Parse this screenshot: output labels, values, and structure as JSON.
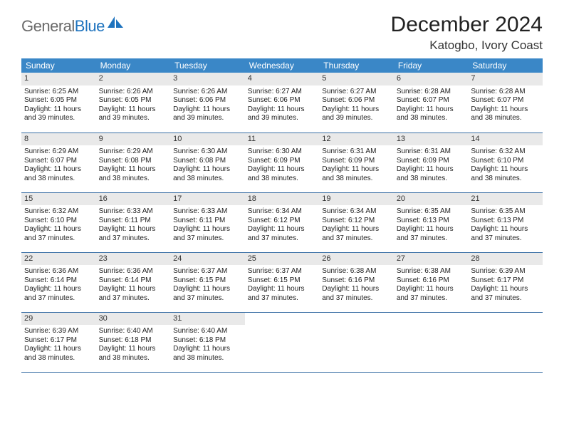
{
  "logo": {
    "text_gray": "General",
    "text_blue": "Blue"
  },
  "header": {
    "month_title": "December 2024",
    "location": "Katogbo, Ivory Coast"
  },
  "colors": {
    "header_bg": "#3a87c7",
    "header_text": "#ffffff",
    "daynum_bg": "#e9e9e9",
    "week_border": "#3a6fa5",
    "logo_gray": "#6a6a6a",
    "logo_blue": "#1e73be"
  },
  "day_names": [
    "Sunday",
    "Monday",
    "Tuesday",
    "Wednesday",
    "Thursday",
    "Friday",
    "Saturday"
  ],
  "weeks": [
    [
      {
        "n": "1",
        "sr": "Sunrise: 6:25 AM",
        "ss": "Sunset: 6:05 PM",
        "d1": "Daylight: 11 hours",
        "d2": "and 39 minutes."
      },
      {
        "n": "2",
        "sr": "Sunrise: 6:26 AM",
        "ss": "Sunset: 6:05 PM",
        "d1": "Daylight: 11 hours",
        "d2": "and 39 minutes."
      },
      {
        "n": "3",
        "sr": "Sunrise: 6:26 AM",
        "ss": "Sunset: 6:06 PM",
        "d1": "Daylight: 11 hours",
        "d2": "and 39 minutes."
      },
      {
        "n": "4",
        "sr": "Sunrise: 6:27 AM",
        "ss": "Sunset: 6:06 PM",
        "d1": "Daylight: 11 hours",
        "d2": "and 39 minutes."
      },
      {
        "n": "5",
        "sr": "Sunrise: 6:27 AM",
        "ss": "Sunset: 6:06 PM",
        "d1": "Daylight: 11 hours",
        "d2": "and 39 minutes."
      },
      {
        "n": "6",
        "sr": "Sunrise: 6:28 AM",
        "ss": "Sunset: 6:07 PM",
        "d1": "Daylight: 11 hours",
        "d2": "and 38 minutes."
      },
      {
        "n": "7",
        "sr": "Sunrise: 6:28 AM",
        "ss": "Sunset: 6:07 PM",
        "d1": "Daylight: 11 hours",
        "d2": "and 38 minutes."
      }
    ],
    [
      {
        "n": "8",
        "sr": "Sunrise: 6:29 AM",
        "ss": "Sunset: 6:07 PM",
        "d1": "Daylight: 11 hours",
        "d2": "and 38 minutes."
      },
      {
        "n": "9",
        "sr": "Sunrise: 6:29 AM",
        "ss": "Sunset: 6:08 PM",
        "d1": "Daylight: 11 hours",
        "d2": "and 38 minutes."
      },
      {
        "n": "10",
        "sr": "Sunrise: 6:30 AM",
        "ss": "Sunset: 6:08 PM",
        "d1": "Daylight: 11 hours",
        "d2": "and 38 minutes."
      },
      {
        "n": "11",
        "sr": "Sunrise: 6:30 AM",
        "ss": "Sunset: 6:09 PM",
        "d1": "Daylight: 11 hours",
        "d2": "and 38 minutes."
      },
      {
        "n": "12",
        "sr": "Sunrise: 6:31 AM",
        "ss": "Sunset: 6:09 PM",
        "d1": "Daylight: 11 hours",
        "d2": "and 38 minutes."
      },
      {
        "n": "13",
        "sr": "Sunrise: 6:31 AM",
        "ss": "Sunset: 6:09 PM",
        "d1": "Daylight: 11 hours",
        "d2": "and 38 minutes."
      },
      {
        "n": "14",
        "sr": "Sunrise: 6:32 AM",
        "ss": "Sunset: 6:10 PM",
        "d1": "Daylight: 11 hours",
        "d2": "and 38 minutes."
      }
    ],
    [
      {
        "n": "15",
        "sr": "Sunrise: 6:32 AM",
        "ss": "Sunset: 6:10 PM",
        "d1": "Daylight: 11 hours",
        "d2": "and 37 minutes."
      },
      {
        "n": "16",
        "sr": "Sunrise: 6:33 AM",
        "ss": "Sunset: 6:11 PM",
        "d1": "Daylight: 11 hours",
        "d2": "and 37 minutes."
      },
      {
        "n": "17",
        "sr": "Sunrise: 6:33 AM",
        "ss": "Sunset: 6:11 PM",
        "d1": "Daylight: 11 hours",
        "d2": "and 37 minutes."
      },
      {
        "n": "18",
        "sr": "Sunrise: 6:34 AM",
        "ss": "Sunset: 6:12 PM",
        "d1": "Daylight: 11 hours",
        "d2": "and 37 minutes."
      },
      {
        "n": "19",
        "sr": "Sunrise: 6:34 AM",
        "ss": "Sunset: 6:12 PM",
        "d1": "Daylight: 11 hours",
        "d2": "and 37 minutes."
      },
      {
        "n": "20",
        "sr": "Sunrise: 6:35 AM",
        "ss": "Sunset: 6:13 PM",
        "d1": "Daylight: 11 hours",
        "d2": "and 37 minutes."
      },
      {
        "n": "21",
        "sr": "Sunrise: 6:35 AM",
        "ss": "Sunset: 6:13 PM",
        "d1": "Daylight: 11 hours",
        "d2": "and 37 minutes."
      }
    ],
    [
      {
        "n": "22",
        "sr": "Sunrise: 6:36 AM",
        "ss": "Sunset: 6:14 PM",
        "d1": "Daylight: 11 hours",
        "d2": "and 37 minutes."
      },
      {
        "n": "23",
        "sr": "Sunrise: 6:36 AM",
        "ss": "Sunset: 6:14 PM",
        "d1": "Daylight: 11 hours",
        "d2": "and 37 minutes."
      },
      {
        "n": "24",
        "sr": "Sunrise: 6:37 AM",
        "ss": "Sunset: 6:15 PM",
        "d1": "Daylight: 11 hours",
        "d2": "and 37 minutes."
      },
      {
        "n": "25",
        "sr": "Sunrise: 6:37 AM",
        "ss": "Sunset: 6:15 PM",
        "d1": "Daylight: 11 hours",
        "d2": "and 37 minutes."
      },
      {
        "n": "26",
        "sr": "Sunrise: 6:38 AM",
        "ss": "Sunset: 6:16 PM",
        "d1": "Daylight: 11 hours",
        "d2": "and 37 minutes."
      },
      {
        "n": "27",
        "sr": "Sunrise: 6:38 AM",
        "ss": "Sunset: 6:16 PM",
        "d1": "Daylight: 11 hours",
        "d2": "and 37 minutes."
      },
      {
        "n": "28",
        "sr": "Sunrise: 6:39 AM",
        "ss": "Sunset: 6:17 PM",
        "d1": "Daylight: 11 hours",
        "d2": "and 37 minutes."
      }
    ],
    [
      {
        "n": "29",
        "sr": "Sunrise: 6:39 AM",
        "ss": "Sunset: 6:17 PM",
        "d1": "Daylight: 11 hours",
        "d2": "and 38 minutes."
      },
      {
        "n": "30",
        "sr": "Sunrise: 6:40 AM",
        "ss": "Sunset: 6:18 PM",
        "d1": "Daylight: 11 hours",
        "d2": "and 38 minutes."
      },
      {
        "n": "31",
        "sr": "Sunrise: 6:40 AM",
        "ss": "Sunset: 6:18 PM",
        "d1": "Daylight: 11 hours",
        "d2": "and 38 minutes."
      },
      null,
      null,
      null,
      null
    ]
  ]
}
